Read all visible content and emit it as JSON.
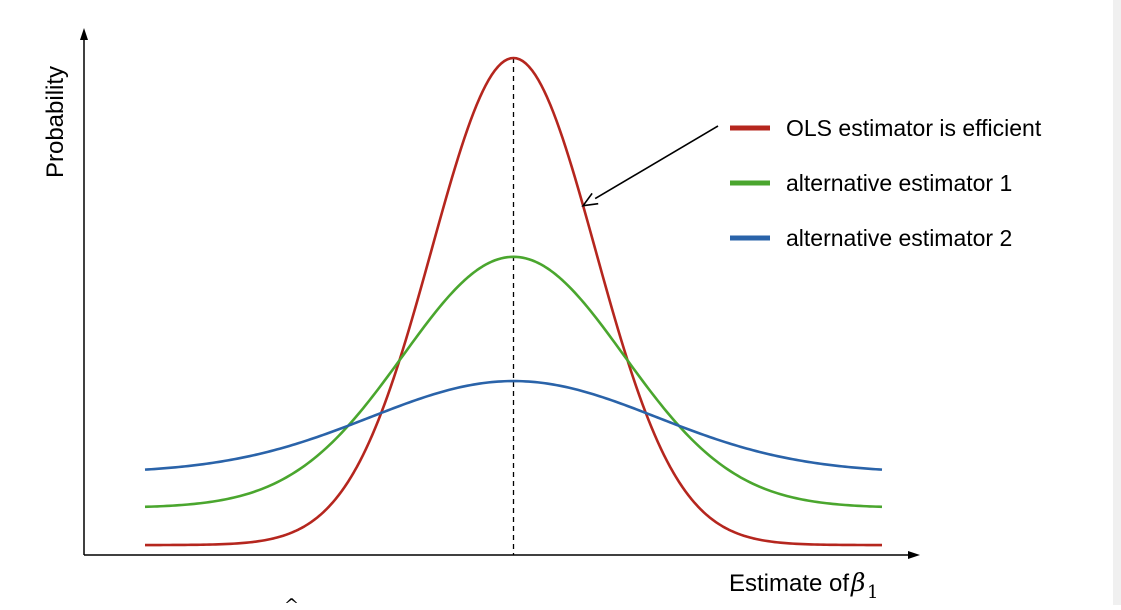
{
  "chart_data": {
    "type": "line",
    "title": "",
    "xlabel": "Estimate of",
    "xlabel_symbol": "β",
    "xlabel_subscript": "1",
    "ylabel": "Probability",
    "xlim": [
      -4.5,
      4.5
    ],
    "ylim": [
      0,
      1
    ],
    "grid": false,
    "legend_position": "top-right",
    "center_line_x": 0,
    "series": [
      {
        "name": "OLS estimator is efficient",
        "color": "#b5261e",
        "baseline": 0.02,
        "peak": 1.0,
        "sigma": 1.0
      },
      {
        "name": "alternative estimator 1",
        "color": "#4aa62e",
        "baseline": 0.095,
        "peak": 0.6,
        "sigma": 1.35
      },
      {
        "name": "alternative estimator 2",
        "color": "#2a63a9",
        "baseline": 0.165,
        "peak": 0.35,
        "sigma": 1.75
      }
    ],
    "annotations": [
      {
        "type": "arrow",
        "from_series": "OLS estimator is efficient",
        "points_to_x": 0.85
      }
    ]
  }
}
